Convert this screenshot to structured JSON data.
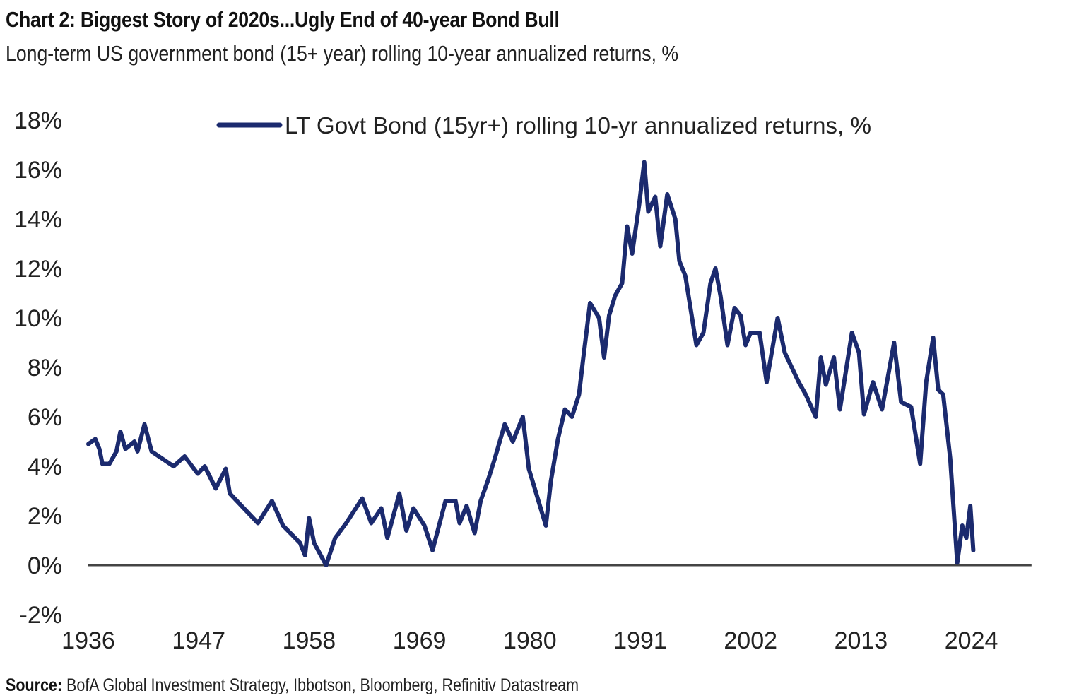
{
  "chart_data": {
    "type": "line",
    "title": "Chart 2: Biggest Story of 2020s...Ugly End of 40-year Bond Bull",
    "subtitle": "Long-term US government bond (15+ year) rolling 10-year annualized returns, %",
    "xlabel": "",
    "ylabel": "",
    "xlim": [
      1936,
      2030
    ],
    "ylim": [
      -2,
      18
    ],
    "y_ticks": [
      -2,
      0,
      2,
      4,
      6,
      8,
      10,
      12,
      14,
      16,
      18
    ],
    "y_tick_labels": [
      "-2%",
      "0%",
      "2%",
      "4%",
      "6%",
      "8%",
      "10%",
      "12%",
      "14%",
      "16%",
      "18%"
    ],
    "x_ticks": [
      1936,
      1947,
      1958,
      1969,
      1980,
      1991,
      2002,
      2013,
      2024
    ],
    "x_tick_labels": [
      "1936",
      "1947",
      "1958",
      "1969",
      "1980",
      "1991",
      "2002",
      "2013",
      "2024"
    ],
    "grid": false,
    "legend_position": "top-center",
    "series": [
      {
        "name": "LT Govt Bond (15yr+) rolling 10-yr annualized returns, %",
        "color": "#1b2a6e",
        "x": [
          1936.0,
          1936.7,
          1937.1,
          1937.4,
          1938.1,
          1938.8,
          1939.2,
          1939.7,
          1940.6,
          1940.9,
          1941.6,
          1942.3,
          1943.4,
          1944.5,
          1945.6,
          1946.9,
          1947.6,
          1948.7,
          1949.7,
          1950.1,
          1951.5,
          1952.9,
          1954.3,
          1955.4,
          1957.1,
          1957.6,
          1958.0,
          1958.5,
          1959.7,
          1960.6,
          1961.7,
          1963.3,
          1964.2,
          1965.2,
          1965.8,
          1967.0,
          1967.7,
          1968.4,
          1969.5,
          1970.3,
          1971.6,
          1972.6,
          1973.0,
          1973.7,
          1974.5,
          1975.1,
          1975.8,
          1976.5,
          1977.5,
          1978.3,
          1979.3,
          1979.9,
          1981.6,
          1982.1,
          1982.8,
          1983.5,
          1984.2,
          1984.9,
          1985.3,
          1986.0,
          1986.9,
          1987.4,
          1987.9,
          1988.5,
          1989.2,
          1989.7,
          1990.2,
          1990.9,
          1991.4,
          1991.8,
          1992.5,
          1993.0,
          1993.7,
          1994.5,
          1994.9,
          1995.5,
          1996.6,
          1997.3,
          1998.0,
          1998.5,
          1999.0,
          1999.7,
          2000.4,
          2001.0,
          2001.5,
          2002.0,
          2002.9,
          2003.6,
          2004.7,
          2005.4,
          2006.1,
          2006.8,
          2007.5,
          2008.5,
          2009.0,
          2009.5,
          2010.3,
          2010.9,
          2012.1,
          2012.8,
          2013.3,
          2014.2,
          2015.1,
          2016.3,
          2017.0,
          2018.0,
          2018.9,
          2019.5,
          2020.2,
          2020.7,
          2021.2,
          2021.9,
          2022.6,
          2023.1,
          2023.5,
          2023.9,
          2024.2
        ],
        "y": [
          4.9,
          5.1,
          4.7,
          4.1,
          4.1,
          4.6,
          5.4,
          4.7,
          5.0,
          4.6,
          5.7,
          4.6,
          4.3,
          4.0,
          4.4,
          3.7,
          4.0,
          3.1,
          3.9,
          2.9,
          2.3,
          1.7,
          2.6,
          1.6,
          0.9,
          0.4,
          1.9,
          0.9,
          0.0,
          1.1,
          1.7,
          2.7,
          1.7,
          2.3,
          1.1,
          2.9,
          1.4,
          2.3,
          1.6,
          0.6,
          2.6,
          2.6,
          1.7,
          2.4,
          1.3,
          2.6,
          3.4,
          4.3,
          5.7,
          5.0,
          6.0,
          3.9,
          1.6,
          3.4,
          5.1,
          6.3,
          6.0,
          6.9,
          8.3,
          10.6,
          10.0,
          8.4,
          10.1,
          10.9,
          11.4,
          13.7,
          12.6,
          14.6,
          16.3,
          14.3,
          14.9,
          12.9,
          15.0,
          14.0,
          12.3,
          11.7,
          8.9,
          9.4,
          11.4,
          12.0,
          10.9,
          8.9,
          10.4,
          10.1,
          8.9,
          9.4,
          9.4,
          7.4,
          10.0,
          8.6,
          8.0,
          7.4,
          6.9,
          6.0,
          8.4,
          7.3,
          8.4,
          6.3,
          9.4,
          8.6,
          6.1,
          7.4,
          6.3,
          9.0,
          6.6,
          6.4,
          4.1,
          7.4,
          9.2,
          7.1,
          6.9,
          4.3,
          0.1,
          1.6,
          1.1,
          2.4,
          0.6
        ]
      }
    ],
    "source_label": "Source:",
    "source_text": "BofA Global Investment Strategy, Ibbotson, Bloomberg, Refinitiv Datastream"
  }
}
